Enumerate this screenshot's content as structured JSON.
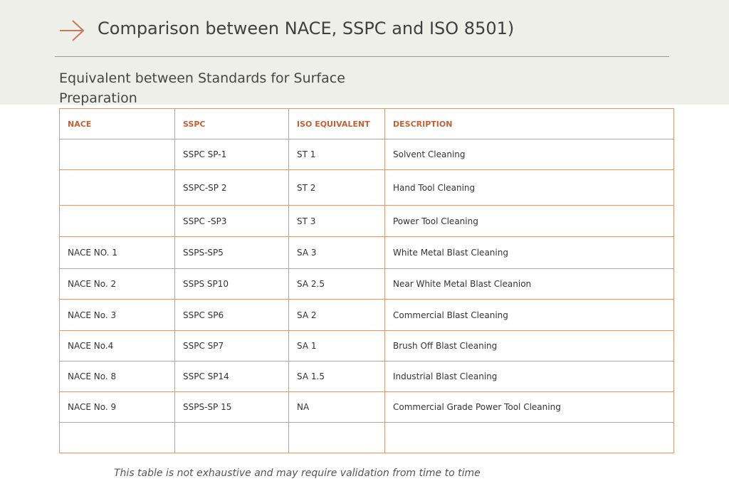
{
  "header": {
    "title": "Comparison between NACE, SSPC and ISO 8501)",
    "subtitle": "Equivalent between Standards for Surface Preparation"
  },
  "table": {
    "columns": [
      "NACE",
      "SSPC",
      "ISO EQUIVALENT",
      "DESCRIPTION"
    ],
    "rows": [
      [
        null,
        "SSPC SP-1",
        "ST 1",
        "Solvent Cleaning"
      ],
      [
        null,
        "SSPC-SP 2",
        "ST 2",
        "Hand Tool Cleaning"
      ],
      [
        null,
        "SSPC -SP3",
        "ST 3",
        "Power Tool Cleaning"
      ],
      [
        "NACE NO. 1",
        "SSPS-SP5",
        "SA 3",
        "White Metal Blast Cleaning"
      ],
      [
        "NACE No. 2",
        "SSPS SP10",
        "SA 2.5",
        "Near White Metal Blast Cleanion"
      ],
      [
        "NACE No. 3",
        "SSPC SP6",
        "SA 2",
        "Commercial Blast Cleaning"
      ],
      [
        "NACE No.4",
        "SSPC SP7",
        "SA 1",
        "Brush Off Blast Cleaning"
      ],
      [
        "NACE No. 8",
        "SSPC SP14",
        "SA 1.5",
        "Industrial Blast Cleaning"
      ],
      [
        "NACE No. 9",
        "SSPS-SP 15",
        "NA",
        "Commercial Grade Power Tool Cleaning"
      ],
      [
        null,
        null,
        null,
        null
      ]
    ]
  },
  "footer": {
    "note": "This table is not exhaustive and may require validation from time to time"
  }
}
